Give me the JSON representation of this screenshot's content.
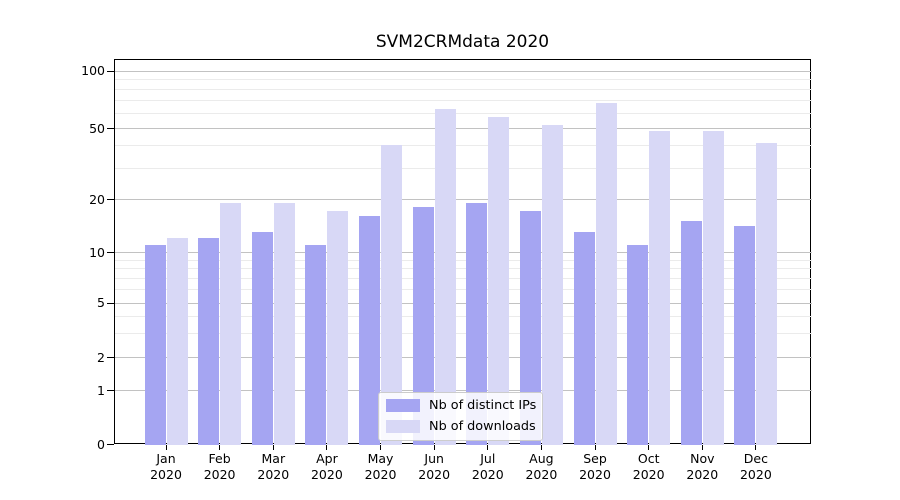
{
  "chart_data": {
    "type": "bar",
    "title": "SVM2CRMdata 2020",
    "categories": [
      "Jan",
      "Feb",
      "Mar",
      "Apr",
      "May",
      "Jun",
      "Jul",
      "Aug",
      "Sep",
      "Oct",
      "Nov",
      "Dec"
    ],
    "category_year": "2020",
    "series": [
      {
        "name": "Nb of distinct IPs",
        "color": "#a5a5f2",
        "values": [
          11,
          12,
          13,
          11,
          16,
          18,
          19,
          17,
          13,
          11,
          15,
          14
        ]
      },
      {
        "name": "Nb of downloads",
        "color": "#d8d8f6",
        "values": [
          12,
          19,
          19,
          17,
          40,
          63,
          57,
          52,
          68,
          48,
          48,
          41
        ]
      }
    ],
    "y_scale": "symlog",
    "y_major_ticks": [
      0,
      1,
      2,
      5,
      10,
      20,
      50,
      100
    ],
    "y_major_tick_labels": [
      "0",
      "1",
      "2",
      "5",
      "10",
      "20",
      "50",
      "100"
    ],
    "y_minor_ticks": [
      3,
      4,
      6,
      7,
      8,
      9,
      30,
      40,
      60,
      70,
      80,
      90
    ],
    "ylim": [
      0,
      113
    ],
    "grid": "on",
    "legend_position": "lower center"
  }
}
